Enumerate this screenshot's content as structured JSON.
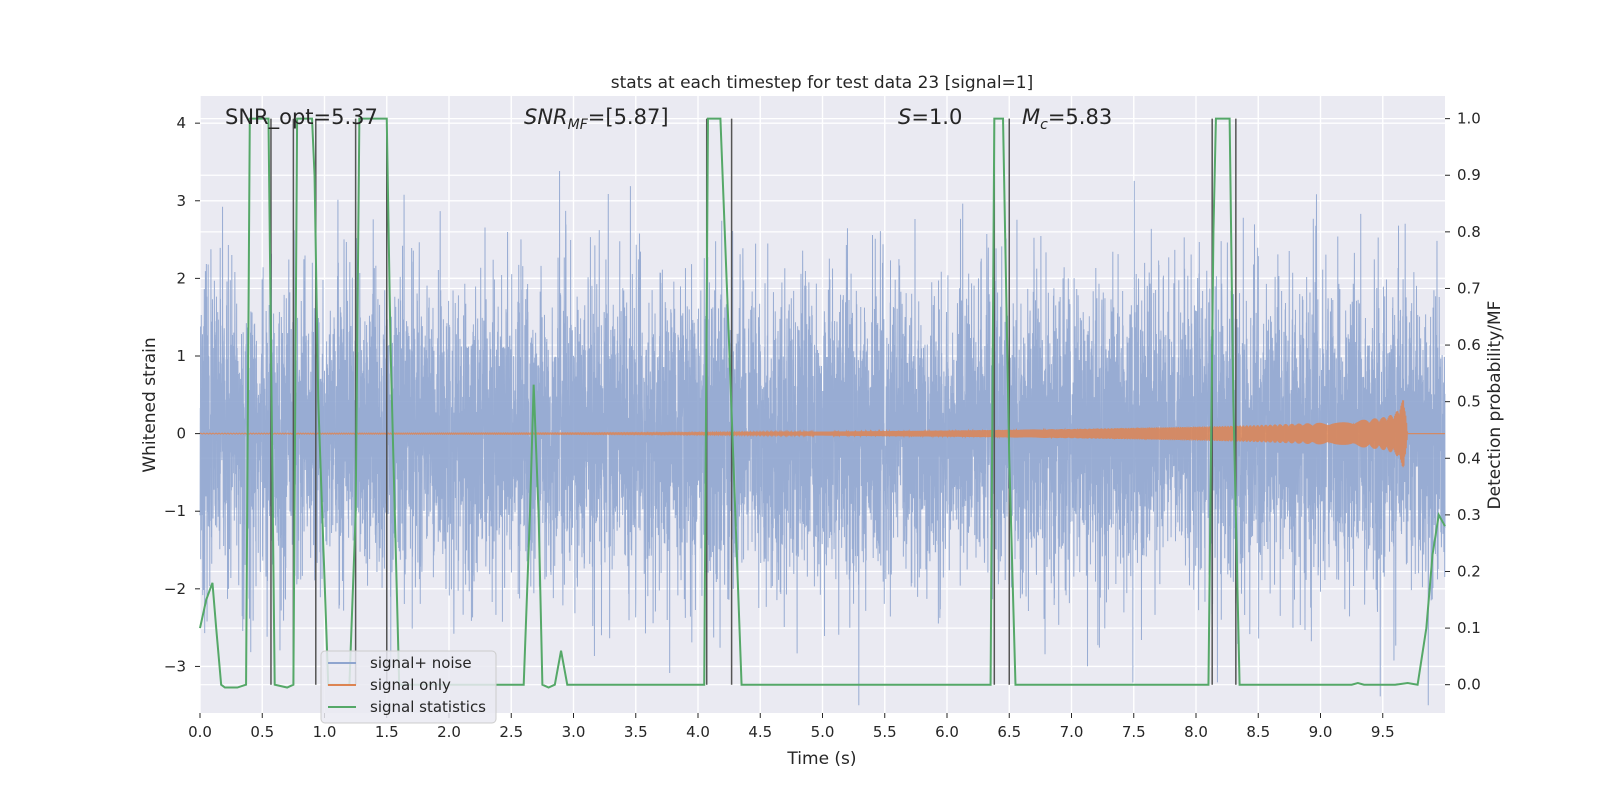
{
  "chart_data": {
    "type": "line",
    "title": "stats at each timestep for test data 23 [signal=1]",
    "xlabel": "Time (s)",
    "ylabel": "Whitened strain",
    "ylabel_right": "Detection probability/MF",
    "xlim": [
      0.0,
      10.0
    ],
    "ylim": [
      -3.6,
      4.35
    ],
    "ylim_right": [
      -0.05,
      1.04
    ],
    "x_ticks": [
      "0.0",
      "0.5",
      "1.0",
      "1.5",
      "2.0",
      "2.5",
      "3.0",
      "3.5",
      "4.0",
      "4.5",
      "5.0",
      "5.5",
      "6.0",
      "6.5",
      "7.0",
      "7.5",
      "8.0",
      "8.5",
      "9.0",
      "9.5"
    ],
    "y_ticks_left": [
      "−3",
      "−2",
      "−1",
      "0",
      "1",
      "2",
      "3",
      "4"
    ],
    "y_ticks_right": [
      "0.0",
      "0.1",
      "0.2",
      "0.3",
      "0.4",
      "0.5",
      "0.6",
      "0.7",
      "0.8",
      "0.9",
      "1.0"
    ],
    "grid": true,
    "legend_position": "lower-left",
    "annotations": {
      "snr_opt": "SNR_opt=5.37",
      "snr_mf_base": "SNR",
      "snr_mf_sub": "MF",
      "snr_mf_val": "=[5.87]",
      "s_var": "S",
      "s_val": "=1.0",
      "mc_var": "M",
      "mc_sub": "c",
      "mc_val": "=5.83"
    },
    "series": [
      {
        "name": "signal+ noise",
        "color": "#8fa5cf",
        "axis": "left",
        "note": "dense whitened noise, amplitude mostly within ±1.8, spikes to ±4"
      },
      {
        "name": "signal only",
        "color": "#dd8452",
        "axis": "left",
        "envelope": {
          "x": [
            0.0,
            3.0,
            4.0,
            5.0,
            6.0,
            7.0,
            8.0,
            8.5,
            9.0,
            9.3,
            9.5,
            9.6,
            9.65,
            9.67,
            9.7,
            10.0
          ],
          "amp": [
            0.005,
            0.01,
            0.015,
            0.025,
            0.04,
            0.06,
            0.09,
            0.11,
            0.14,
            0.17,
            0.21,
            0.26,
            0.38,
            0.5,
            0.0,
            0.0
          ]
        }
      },
      {
        "name": "signal statistics",
        "color": "#55a868",
        "axis": "right",
        "x": [
          0.0,
          0.05,
          0.1,
          0.13,
          0.17,
          0.2,
          0.3,
          0.37,
          0.4,
          0.55,
          0.6,
          0.7,
          0.75,
          0.78,
          0.9,
          0.92,
          0.95,
          1.03,
          1.2,
          1.25,
          1.28,
          1.5,
          1.53,
          1.6,
          2.6,
          2.65,
          2.68,
          2.72,
          2.75,
          2.8,
          2.85,
          2.9,
          2.95,
          3.0,
          4.05,
          4.08,
          4.18,
          4.25,
          4.35,
          6.35,
          6.38,
          6.45,
          6.5,
          6.55,
          8.1,
          8.14,
          8.16,
          8.27,
          8.3,
          8.35,
          9.25,
          9.3,
          9.35,
          9.6,
          9.7,
          9.78,
          9.85,
          9.9,
          9.95,
          10.0
        ],
        "values": [
          0.1,
          0.15,
          0.18,
          0.1,
          0.0,
          -0.005,
          -0.005,
          0.0,
          1.0,
          1.0,
          0.0,
          -0.005,
          0.0,
          1.0,
          1.0,
          0.9,
          0.5,
          0.0,
          0.0,
          0.3,
          1.0,
          1.0,
          0.6,
          0.0,
          0.0,
          0.3,
          0.53,
          0.3,
          0.0,
          -0.005,
          0.0,
          0.06,
          0.0,
          0.0,
          0.0,
          1.0,
          1.0,
          0.6,
          0.0,
          0.0,
          1.0,
          1.0,
          0.4,
          0.0,
          0.0,
          0.8,
          1.0,
          1.0,
          0.5,
          0.0,
          0.0,
          0.003,
          0.0,
          0.0,
          0.003,
          0.0,
          0.1,
          0.23,
          0.3,
          0.28
        ]
      }
    ],
    "vlines_x": [
      0.57,
      0.75,
      0.93,
      1.25,
      1.5,
      4.07,
      4.27,
      6.38,
      6.5,
      8.13,
      8.32
    ],
    "vlines_color": "#555555"
  }
}
